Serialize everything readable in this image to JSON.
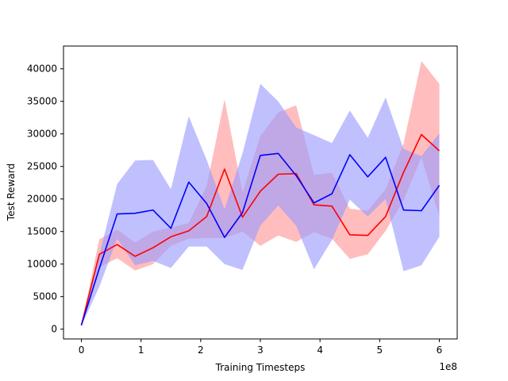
{
  "chart_data": {
    "type": "line",
    "title": "",
    "xlabel": "Training Timesteps",
    "ylabel": "Test Reward",
    "x_multiplier_label": "1e8",
    "xlim": [
      -0.3,
      6.3
    ],
    "ylim": [
      -1500,
      43500
    ],
    "xticks": [
      0,
      1,
      2,
      3,
      4,
      5,
      6
    ],
    "xtick_labels": [
      "0",
      "1",
      "2",
      "3",
      "4",
      "5",
      "6"
    ],
    "yticks": [
      0,
      5000,
      10000,
      15000,
      20000,
      25000,
      30000,
      35000,
      40000
    ],
    "ytick_labels": [
      "0",
      "5000",
      "10000",
      "15000",
      "20000",
      "25000",
      "30000",
      "35000",
      "40000"
    ],
    "grid": false,
    "x": [
      0,
      0.3,
      0.6,
      0.9,
      1.2,
      1.5,
      1.8,
      2.1,
      2.4,
      2.7,
      3.0,
      3.3,
      3.6,
      3.9,
      4.2,
      4.5,
      4.8,
      5.1,
      5.4,
      5.7,
      6.0
    ],
    "series": [
      {
        "name": "red",
        "color": "#ff0000",
        "band_color": "#ff9999",
        "values": [
          600,
          11500,
          13000,
          11200,
          12500,
          14200,
          15100,
          17300,
          24600,
          17200,
          21200,
          23800,
          23900,
          19100,
          18900,
          14500,
          14400,
          17300,
          24100,
          29900,
          27400
        ],
        "upper": [
          700,
          13800,
          15300,
          13300,
          15000,
          15600,
          16300,
          22000,
          35300,
          21000,
          29700,
          33300,
          34400,
          23700,
          24000,
          18500,
          18200,
          21500,
          28500,
          41200,
          37700
        ],
        "lower": [
          500,
          9500,
          10900,
          9000,
          10000,
          12800,
          13900,
          14000,
          14000,
          15000,
          12800,
          14400,
          13400,
          14900,
          13900,
          10800,
          11500,
          15100,
          19800,
          26400,
          17300
        ]
      },
      {
        "name": "blue",
        "color": "#0000ff",
        "band_color": "#9999ff",
        "values": [
          600,
          9300,
          17700,
          17800,
          18300,
          15500,
          22600,
          19300,
          14100,
          17900,
          26700,
          27000,
          23600,
          19400,
          20800,
          26800,
          23400,
          26400,
          18300,
          18200,
          22100
        ],
        "upper": [
          700,
          11400,
          22300,
          25900,
          26000,
          21500,
          32700,
          26000,
          18400,
          27000,
          37700,
          35000,
          31000,
          29800,
          28600,
          33600,
          29400,
          35600,
          27700,
          26600,
          30100
        ],
        "lower": [
          500,
          6500,
          13900,
          9800,
          10500,
          9400,
          12700,
          12700,
          10000,
          9100,
          15900,
          19000,
          15900,
          9200,
          13700,
          19900,
          17300,
          20000,
          8900,
          9800,
          14200
        ]
      }
    ]
  }
}
